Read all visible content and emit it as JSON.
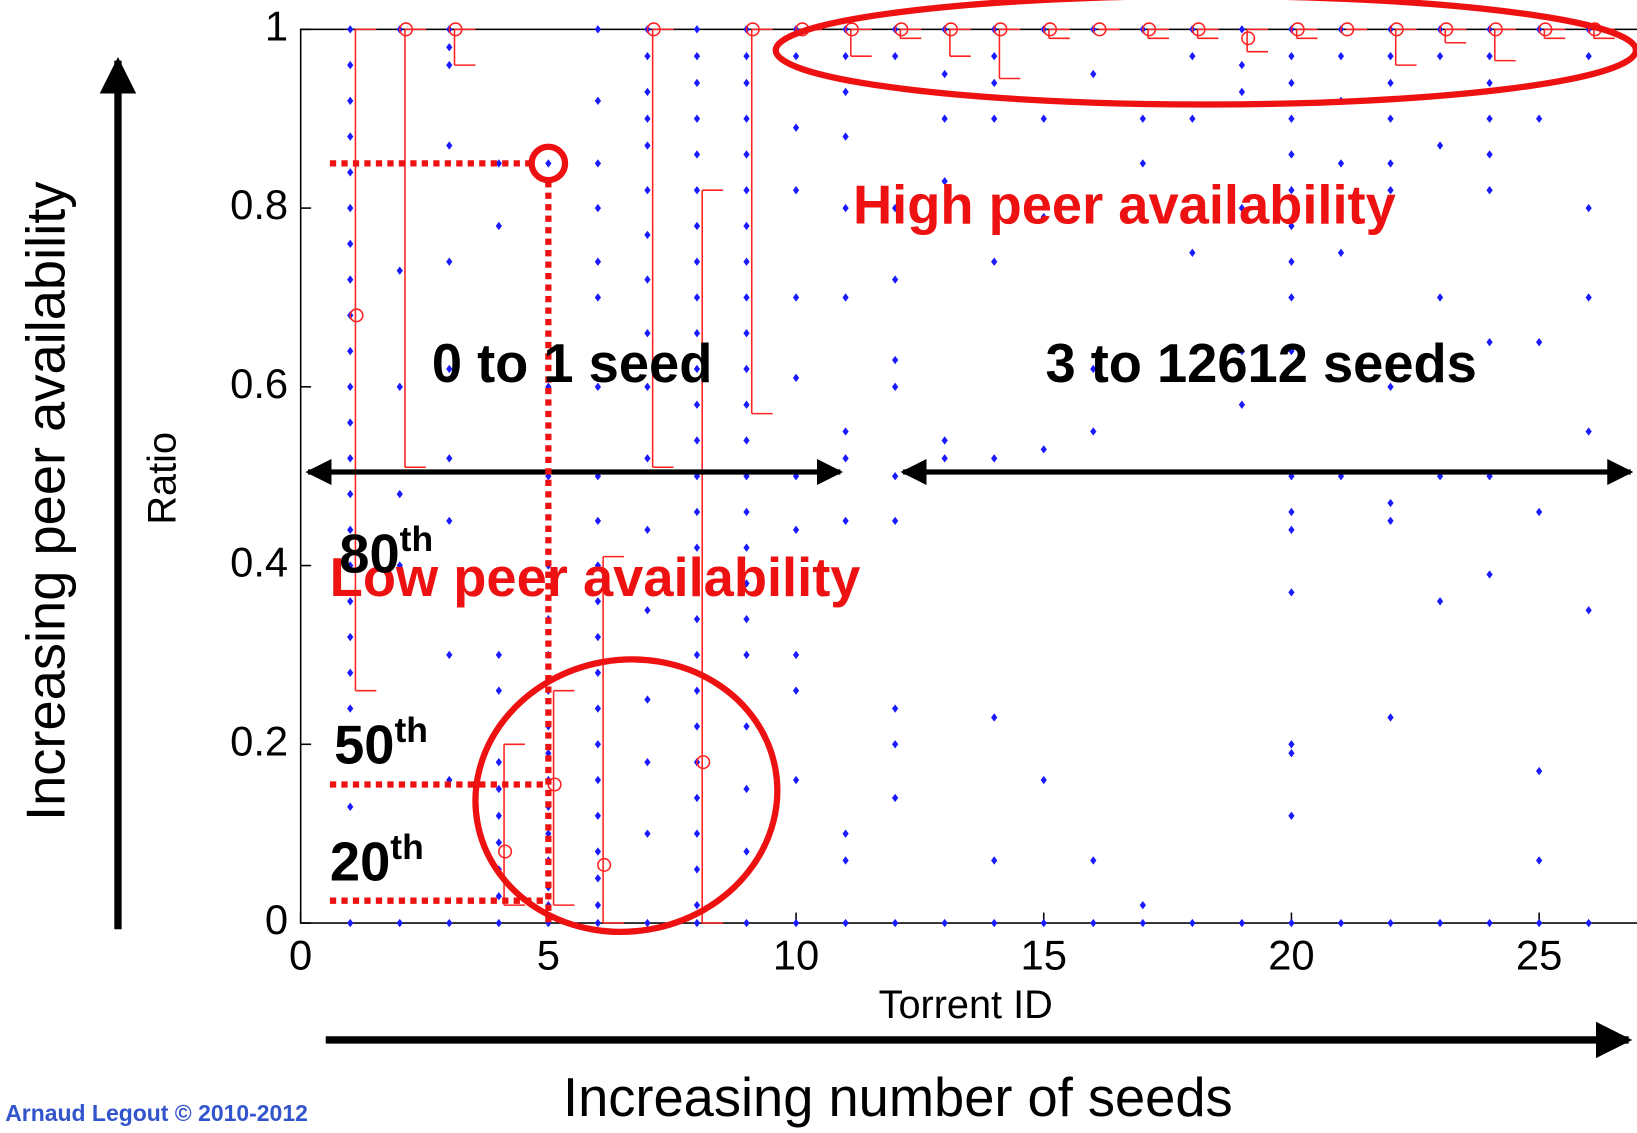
{
  "chart_data": {
    "type": "scatter",
    "xlabel": "Torrent ID",
    "ylabel": "Ratio",
    "xlim": [
      0,
      27
    ],
    "ylim": [
      0,
      1
    ],
    "xticks": [
      0,
      5,
      10,
      15,
      20,
      25
    ],
    "yticks": [
      0,
      0.2,
      0.4,
      0.6,
      0.8,
      1
    ],
    "dot_color": "#1a1aff",
    "median_color": "#ff2222",
    "columns": [
      {
        "x": 1,
        "values": [
          1,
          0.96,
          0.92,
          0.88,
          0.84,
          0.8,
          0.76,
          0.72,
          0.68,
          0.64,
          0.6,
          0.56,
          0.52,
          0.48,
          0.44,
          0.4,
          0.36,
          0.32,
          0.28,
          0.24,
          0.13,
          0
        ]
      },
      {
        "x": 2,
        "values": [
          1,
          0.73,
          0.6,
          0.48,
          0.4,
          0
        ]
      },
      {
        "x": 3,
        "values": [
          1,
          0.98,
          0.96,
          0.87,
          0.74,
          0.62,
          0.52,
          0.45,
          0.3,
          0.16,
          0
        ]
      },
      {
        "x": 4,
        "values": [
          0.85,
          0.78,
          0.3,
          0.26,
          0.22,
          0.18,
          0.15,
          0.12,
          0.09,
          0.06,
          0.03,
          0
        ]
      },
      {
        "x": 5,
        "values": [
          0.85,
          0.6,
          0.5,
          0.4,
          0.34,
          0.3,
          0.26,
          0.22,
          0.19,
          0.16,
          0.13,
          0.1,
          0.07,
          0.04,
          0.02,
          0
        ]
      },
      {
        "x": 6,
        "values": [
          1,
          0.92,
          0.85,
          0.8,
          0.74,
          0.7,
          0.6,
          0.5,
          0.45,
          0.4,
          0.36,
          0.32,
          0.28,
          0.24,
          0.2,
          0.16,
          0.12,
          0.08,
          0.05,
          0.02,
          0
        ]
      },
      {
        "x": 7,
        "values": [
          1,
          0.97,
          0.93,
          0.9,
          0.87,
          0.82,
          0.77,
          0.72,
          0.66,
          0.6,
          0.52,
          0.44,
          0.35,
          0.25,
          0.18,
          0.1,
          0
        ]
      },
      {
        "x": 8,
        "values": [
          1,
          0.97,
          0.94,
          0.9,
          0.86,
          0.82,
          0.78,
          0.74,
          0.7,
          0.66,
          0.62,
          0.58,
          0.54,
          0.5,
          0.46,
          0.42,
          0.38,
          0.34,
          0.3,
          0.26,
          0.22,
          0.18,
          0.14,
          0.1,
          0.06,
          0.02,
          0
        ]
      },
      {
        "x": 9,
        "values": [
          1,
          0.97,
          0.94,
          0.9,
          0.86,
          0.82,
          0.78,
          0.74,
          0.7,
          0.66,
          0.62,
          0.58,
          0.54,
          0.5,
          0.46,
          0.42,
          0.38,
          0.34,
          0.3,
          0.22,
          0.15,
          0.08,
          0
        ]
      },
      {
        "x": 10,
        "values": [
          1,
          0.97,
          0.89,
          0.82,
          0.7,
          0.61,
          0.5,
          0.44,
          0.3,
          0.26,
          0.16,
          0
        ]
      },
      {
        "x": 11,
        "values": [
          1,
          0.97,
          0.93,
          0.88,
          0.8,
          0.7,
          0.55,
          0.52,
          0.45,
          0.1,
          0.07,
          0
        ]
      },
      {
        "x": 12,
        "values": [
          1,
          0.97,
          0.8,
          0.72,
          0.63,
          0.6,
          0.5,
          0.45,
          0.24,
          0.2,
          0.14,
          0
        ]
      },
      {
        "x": 13,
        "values": [
          1,
          0.95,
          0.9,
          0.83,
          0.54,
          0.52,
          0
        ]
      },
      {
        "x": 14,
        "values": [
          1,
          0.97,
          0.94,
          0.9,
          0.74,
          0.52,
          0.23,
          0.07,
          0
        ]
      },
      {
        "x": 15,
        "values": [
          1,
          0.9,
          0.79,
          0.53,
          0.16,
          0
        ]
      },
      {
        "x": 16,
        "values": [
          1,
          0.95,
          0.62,
          0.55,
          0.07,
          0
        ]
      },
      {
        "x": 17,
        "values": [
          1,
          0.9,
          0.85,
          0.02,
          0
        ]
      },
      {
        "x": 18,
        "values": [
          1,
          0.97,
          0.9,
          0.75,
          0
        ]
      },
      {
        "x": 19,
        "values": [
          1,
          0.96,
          0.93,
          0.8,
          0.64,
          0.58,
          0
        ]
      },
      {
        "x": 20,
        "values": [
          1,
          0.97,
          0.94,
          0.9,
          0.86,
          0.82,
          0.78,
          0.74,
          0.7,
          0.64,
          0.5,
          0.46,
          0.44,
          0.37,
          0.2,
          0.19,
          0.12,
          0
        ]
      },
      {
        "x": 21,
        "values": [
          1,
          0.97,
          0.92,
          0.85,
          0.75,
          0.5,
          0
        ]
      },
      {
        "x": 22,
        "values": [
          1,
          0.97,
          0.94,
          0.9,
          0.85,
          0.82,
          0.6,
          0.47,
          0.45,
          0.23,
          0
        ]
      },
      {
        "x": 23,
        "values": [
          1,
          0.97,
          0.87,
          0.7,
          0.5,
          0.36,
          0
        ]
      },
      {
        "x": 24,
        "values": [
          1,
          0.97,
          0.94,
          0.9,
          0.86,
          0.82,
          0.65,
          0.5,
          0.39,
          0
        ]
      },
      {
        "x": 25,
        "values": [
          1,
          0.9,
          0.65,
          0.46,
          0.17,
          0.07,
          0
        ]
      },
      {
        "x": 26,
        "values": [
          1,
          0.97,
          0.8,
          0.7,
          0.55,
          0.35,
          0
        ]
      }
    ],
    "medians": {
      "x": [
        1,
        2,
        3,
        4,
        5,
        6,
        7,
        8,
        9,
        10,
        11,
        12,
        13,
        14,
        15,
        16,
        17,
        18,
        19,
        20,
        21,
        22,
        23,
        24,
        25,
        26
      ],
      "values": [
        0.68,
        1,
        1,
        0.08,
        0.155,
        0.065,
        1,
        0.18,
        1,
        1,
        1,
        1,
        1,
        1,
        1,
        1,
        1,
        1,
        0.99,
        1,
        1,
        1,
        1,
        1,
        1,
        1
      ],
      "low": [
        0.26,
        0.51,
        0.96,
        0.02,
        0.02,
        0,
        0.51,
        0,
        0.57,
        1,
        0.97,
        0.99,
        0.97,
        0.945,
        0.99,
        1,
        0.99,
        0.99,
        0.975,
        0.99,
        1,
        0.96,
        0.985,
        0.965,
        0.99,
        0.99
      ],
      "high": [
        1,
        1,
        1,
        0.2,
        0.26,
        0.41,
        1,
        0.82,
        1,
        1,
        1,
        1,
        1,
        1,
        1,
        1,
        1,
        1,
        1,
        1,
        1,
        1,
        1,
        1,
        1,
        1
      ]
    },
    "percentile_x": 5,
    "percentiles": [
      {
        "label": "80",
        "sup": "th",
        "value": 0.85
      },
      {
        "label": "50",
        "sup": "th",
        "value": 0.155
      },
      {
        "label": "20",
        "sup": "th",
        "value": 0.025
      }
    ],
    "annotations": {
      "high": "High peer availability",
      "low": "Low peer availability",
      "few_seeds": "0 to 1 seed",
      "many_seeds": "3 to 12612 seeds",
      "y_arrow": "Increasing peer availability",
      "x_arrow": "Increasing number of seeds",
      "credit": "Arnaud Legout © 2010-2012"
    }
  }
}
